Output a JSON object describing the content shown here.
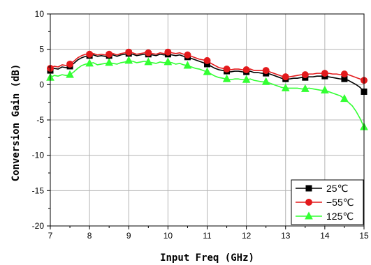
{
  "chart_data": {
    "type": "line",
    "xlabel": "Input Freq (GHz)",
    "ylabel": "Conversion Gain (dB)",
    "xlim": [
      7,
      15
    ],
    "ylim": [
      -20,
      10
    ],
    "xticks": [
      7,
      8,
      9,
      10,
      11,
      12,
      13,
      14,
      15
    ],
    "yticks": [
      -20,
      -15,
      -10,
      -5,
      0,
      5,
      10
    ],
    "grid": true,
    "legend_position": "bottom-right",
    "series": [
      {
        "name": "25℃",
        "color": "#000000",
        "marker": "square",
        "x": [
          7,
          7.1,
          7.2,
          7.3,
          7.4,
          7.5,
          7.6,
          7.7,
          7.8,
          7.9,
          8,
          8.1,
          8.2,
          8.3,
          8.4,
          8.5,
          8.6,
          8.7,
          8.8,
          8.9,
          9,
          9.1,
          9.2,
          9.3,
          9.4,
          9.5,
          9.6,
          9.7,
          9.8,
          9.9,
          10,
          10.1,
          10.2,
          10.3,
          10.4,
          10.5,
          10.6,
          10.7,
          10.8,
          10.9,
          11,
          11.1,
          11.2,
          11.3,
          11.4,
          11.5,
          11.6,
          11.7,
          11.8,
          11.9,
          12,
          12.1,
          12.2,
          12.3,
          12.4,
          12.5,
          12.6,
          12.7,
          12.8,
          12.9,
          13,
          13.1,
          13.2,
          13.3,
          13.4,
          13.5,
          13.6,
          13.7,
          13.8,
          13.9,
          14,
          14.1,
          14.2,
          14.3,
          14.4,
          14.5,
          14.6,
          14.7,
          14.8,
          14.9,
          15
        ],
        "values": [
          2.0,
          2.3,
          2.2,
          2.5,
          2.4,
          2.6,
          3.0,
          3.5,
          3.8,
          4.0,
          4.1,
          4.2,
          4.0,
          4.1,
          4.0,
          4.1,
          4.2,
          4.0,
          4.2,
          4.3,
          4.4,
          4.3,
          4.1,
          4.2,
          4.3,
          4.3,
          4.2,
          4.1,
          4.3,
          4.2,
          4.3,
          4.2,
          4.1,
          4.2,
          4.0,
          3.9,
          3.7,
          3.5,
          3.3,
          3.1,
          2.9,
          2.6,
          2.3,
          2.1,
          2.0,
          1.9,
          1.8,
          1.9,
          1.9,
          1.8,
          1.8,
          1.9,
          1.7,
          1.7,
          1.6,
          1.6,
          1.5,
          1.3,
          1.1,
          0.9,
          0.8,
          0.8,
          0.9,
          0.9,
          1.0,
          1.0,
          1.1,
          1.1,
          1.2,
          1.2,
          1.2,
          1.1,
          1.0,
          0.9,
          0.8,
          0.8,
          0.6,
          0.3,
          0.0,
          -0.4,
          -1.0
        ]
      },
      {
        "name": "−55℃",
        "color": "#e31a1c",
        "marker": "circle",
        "x": [
          7,
          7.1,
          7.2,
          7.3,
          7.4,
          7.5,
          7.6,
          7.7,
          7.8,
          7.9,
          8,
          8.1,
          8.2,
          8.3,
          8.4,
          8.5,
          8.6,
          8.7,
          8.8,
          8.9,
          9,
          9.1,
          9.2,
          9.3,
          9.4,
          9.5,
          9.6,
          9.7,
          9.8,
          9.9,
          10,
          10.1,
          10.2,
          10.3,
          10.4,
          10.5,
          10.6,
          10.7,
          10.8,
          10.9,
          11,
          11.1,
          11.2,
          11.3,
          11.4,
          11.5,
          11.6,
          11.7,
          11.8,
          11.9,
          12,
          12.1,
          12.2,
          12.3,
          12.4,
          12.5,
          12.6,
          12.7,
          12.8,
          12.9,
          13,
          13.1,
          13.2,
          13.3,
          13.4,
          13.5,
          13.6,
          13.7,
          13.8,
          13.9,
          14,
          14.1,
          14.2,
          14.3,
          14.4,
          14.5,
          14.6,
          14.7,
          14.8,
          14.9,
          15
        ],
        "values": [
          2.3,
          2.6,
          2.5,
          2.8,
          2.7,
          2.9,
          3.3,
          3.8,
          4.1,
          4.3,
          4.3,
          4.4,
          4.2,
          4.3,
          4.2,
          4.3,
          4.4,
          4.2,
          4.4,
          4.5,
          4.6,
          4.5,
          4.3,
          4.4,
          4.5,
          4.5,
          4.4,
          4.3,
          4.5,
          4.4,
          4.6,
          4.5,
          4.4,
          4.5,
          4.3,
          4.2,
          4.0,
          3.8,
          3.6,
          3.5,
          3.4,
          3.0,
          2.7,
          2.4,
          2.3,
          2.2,
          2.1,
          2.2,
          2.2,
          2.1,
          2.1,
          2.2,
          2.0,
          2.0,
          2.0,
          2.0,
          1.8,
          1.6,
          1.4,
          1.2,
          1.1,
          1.1,
          1.2,
          1.3,
          1.4,
          1.4,
          1.5,
          1.5,
          1.6,
          1.6,
          1.6,
          1.6,
          1.5,
          1.5,
          1.4,
          1.5,
          1.4,
          1.2,
          1.0,
          0.8,
          0.6
        ]
      },
      {
        "name": "125℃",
        "color": "#33ff33",
        "marker": "triangle",
        "x": [
          7,
          7.1,
          7.2,
          7.3,
          7.4,
          7.5,
          7.6,
          7.7,
          7.8,
          7.9,
          8,
          8.1,
          8.2,
          8.3,
          8.4,
          8.5,
          8.6,
          8.7,
          8.8,
          8.9,
          9,
          9.1,
          9.2,
          9.3,
          9.4,
          9.5,
          9.6,
          9.7,
          9.8,
          9.9,
          10,
          10.1,
          10.2,
          10.3,
          10.4,
          10.5,
          10.6,
          10.7,
          10.8,
          10.9,
          11,
          11.1,
          11.2,
          11.3,
          11.4,
          11.5,
          11.6,
          11.7,
          11.8,
          11.9,
          12,
          12.1,
          12.2,
          12.3,
          12.4,
          12.5,
          12.6,
          12.7,
          12.8,
          12.9,
          13,
          13.1,
          13.2,
          13.3,
          13.4,
          13.5,
          13.6,
          13.7,
          13.8,
          13.9,
          14,
          14.1,
          14.2,
          14.3,
          14.4,
          14.5,
          14.6,
          14.7,
          14.8,
          14.9,
          15
        ],
        "values": [
          1.0,
          1.3,
          1.2,
          1.4,
          1.3,
          1.4,
          1.8,
          2.3,
          2.7,
          2.9,
          3.0,
          3.1,
          2.8,
          2.9,
          3.0,
          3.1,
          3.0,
          2.9,
          3.1,
          3.2,
          3.4,
          3.3,
          3.1,
          3.2,
          3.3,
          3.2,
          3.1,
          3.0,
          3.2,
          3.1,
          3.2,
          3.1,
          2.9,
          3.0,
          2.8,
          2.7,
          2.5,
          2.3,
          2.2,
          2.0,
          1.8,
          1.5,
          1.2,
          1.0,
          0.9,
          0.8,
          0.7,
          0.8,
          0.8,
          0.7,
          0.7,
          0.8,
          0.6,
          0.5,
          0.4,
          0.4,
          0.2,
          0.0,
          -0.2,
          -0.4,
          -0.5,
          -0.5,
          -0.5,
          -0.5,
          -0.6,
          -0.6,
          -0.5,
          -0.6,
          -0.7,
          -0.8,
          -0.8,
          -1.0,
          -1.2,
          -1.4,
          -1.6,
          -2.0,
          -2.5,
          -3.0,
          -3.8,
          -4.8,
          -6.0
        ]
      }
    ],
    "marker_x": [
      7,
      7.5,
      8,
      8.5,
      9,
      9.5,
      10,
      10.5,
      11,
      11.5,
      12,
      12.5,
      13,
      13.5,
      14,
      14.5,
      15
    ]
  }
}
